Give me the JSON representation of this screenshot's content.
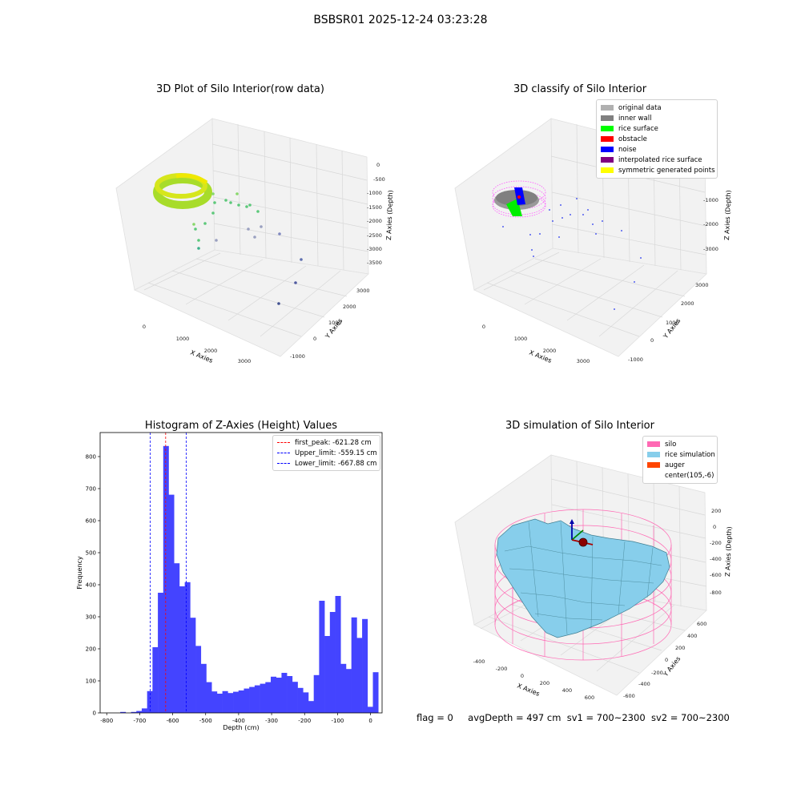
{
  "suptitle": "BSBSR01 2025-12-24 03:23:28",
  "panels": {
    "raw": {
      "title": "3D Plot of Silo Interior(row data)",
      "xlabel": "X Axies",
      "ylabel": "Y Axies",
      "zlabel": "Z Axies (Depth)",
      "xticks": [
        "0",
        "1000",
        "2000",
        "3000"
      ],
      "yticks": [
        "-1000",
        "0",
        "1000",
        "2000",
        "3000"
      ],
      "zticks": [
        "0",
        "-500",
        "-1000",
        "-1500",
        "-2000",
        "-2500",
        "-3000",
        "-3500"
      ]
    },
    "classify": {
      "title": "3D classify of Silo Interior",
      "xlabel": "X Axies",
      "ylabel": "Y Axies",
      "zlabel": "Z Axies (Depth)",
      "xticks": [
        "0",
        "1000",
        "2000",
        "3000"
      ],
      "yticks": [
        "-1000",
        "0",
        "1000",
        "2000",
        "3000"
      ],
      "zticks": [
        "0",
        "-1000",
        "-2000",
        "-3000"
      ]
    },
    "simulation": {
      "title": "3D simulation of Silo Interior",
      "xlabel": "X Axies",
      "ylabel": "Y Axies",
      "zlabel": "Z Axies (Depth)",
      "xticks": [
        "-400",
        "-200",
        "0",
        "200",
        "400",
        "600"
      ],
      "yticks": [
        "-600",
        "-400",
        "-200",
        "0",
        "200",
        "400",
        "600"
      ],
      "zticks": [
        "200",
        "0",
        "-200",
        "-400",
        "-600",
        "-800"
      ]
    }
  },
  "legend_classify": [
    {
      "label": "original data",
      "color": "#b0b0b0"
    },
    {
      "label": "inner wall",
      "color": "#808080"
    },
    {
      "label": "rice surface",
      "color": "#00ff00"
    },
    {
      "label": "obstacle",
      "color": "#ff0000"
    },
    {
      "label": "noise",
      "color": "#0000ff"
    },
    {
      "label": "interpolated rice surface",
      "color": "#800080"
    },
    {
      "label": "symmetric generated points",
      "color": "#ffff00"
    }
  ],
  "legend_simulation": [
    {
      "label": "silo",
      "color": "#ff69b4"
    },
    {
      "label": "rice simulation",
      "color": "#87ceeb"
    },
    {
      "label": "auger",
      "color": "#ff4500"
    },
    {
      "label": "center(105,-6)",
      "color": ""
    }
  ],
  "chart_data": {
    "type": "bar",
    "title": "Histogram of Z-Axies (Height) Values",
    "xlabel": "Depth (cm)",
    "ylabel": "Frequency",
    "xlim": [
      -820,
      35
    ],
    "ylim": [
      0,
      875
    ],
    "xticks": [
      -800,
      -700,
      -600,
      -500,
      -400,
      -300,
      -200,
      -100,
      0
    ],
    "yticks": [
      0,
      100,
      200,
      300,
      400,
      500,
      600,
      700,
      800
    ],
    "bin_width": 16.3,
    "bins_start": -759,
    "bar_color": "#4444ff",
    "values": [
      3,
      0,
      3,
      6,
      14,
      68,
      205,
      375,
      833,
      681,
      467,
      395,
      408,
      297,
      209,
      153,
      96,
      67,
      60,
      68,
      62,
      66,
      70,
      76,
      81,
      86,
      91,
      96,
      113,
      110,
      125,
      115,
      97,
      78,
      64,
      37,
      118,
      350,
      240,
      315,
      365,
      153,
      137,
      298,
      234,
      293,
      19,
      127
    ],
    "vlines": [
      {
        "label": "first_peak: -621.28 cm",
        "x": -621.28,
        "color": "#ff0000"
      },
      {
        "label": "Upper_limit: -559.15 cm",
        "x": -559.15,
        "color": "#0000ff"
      },
      {
        "label": "Lower_limit: -667.88 cm",
        "x": -667.88,
        "color": "#0000ff"
      }
    ]
  },
  "footer": {
    "flag": "flag = 0",
    "avg": "avgDepth = 497 cm",
    "sv1": "sv1 = 700~2300",
    "sv2": "sv2 = 700~2300"
  }
}
